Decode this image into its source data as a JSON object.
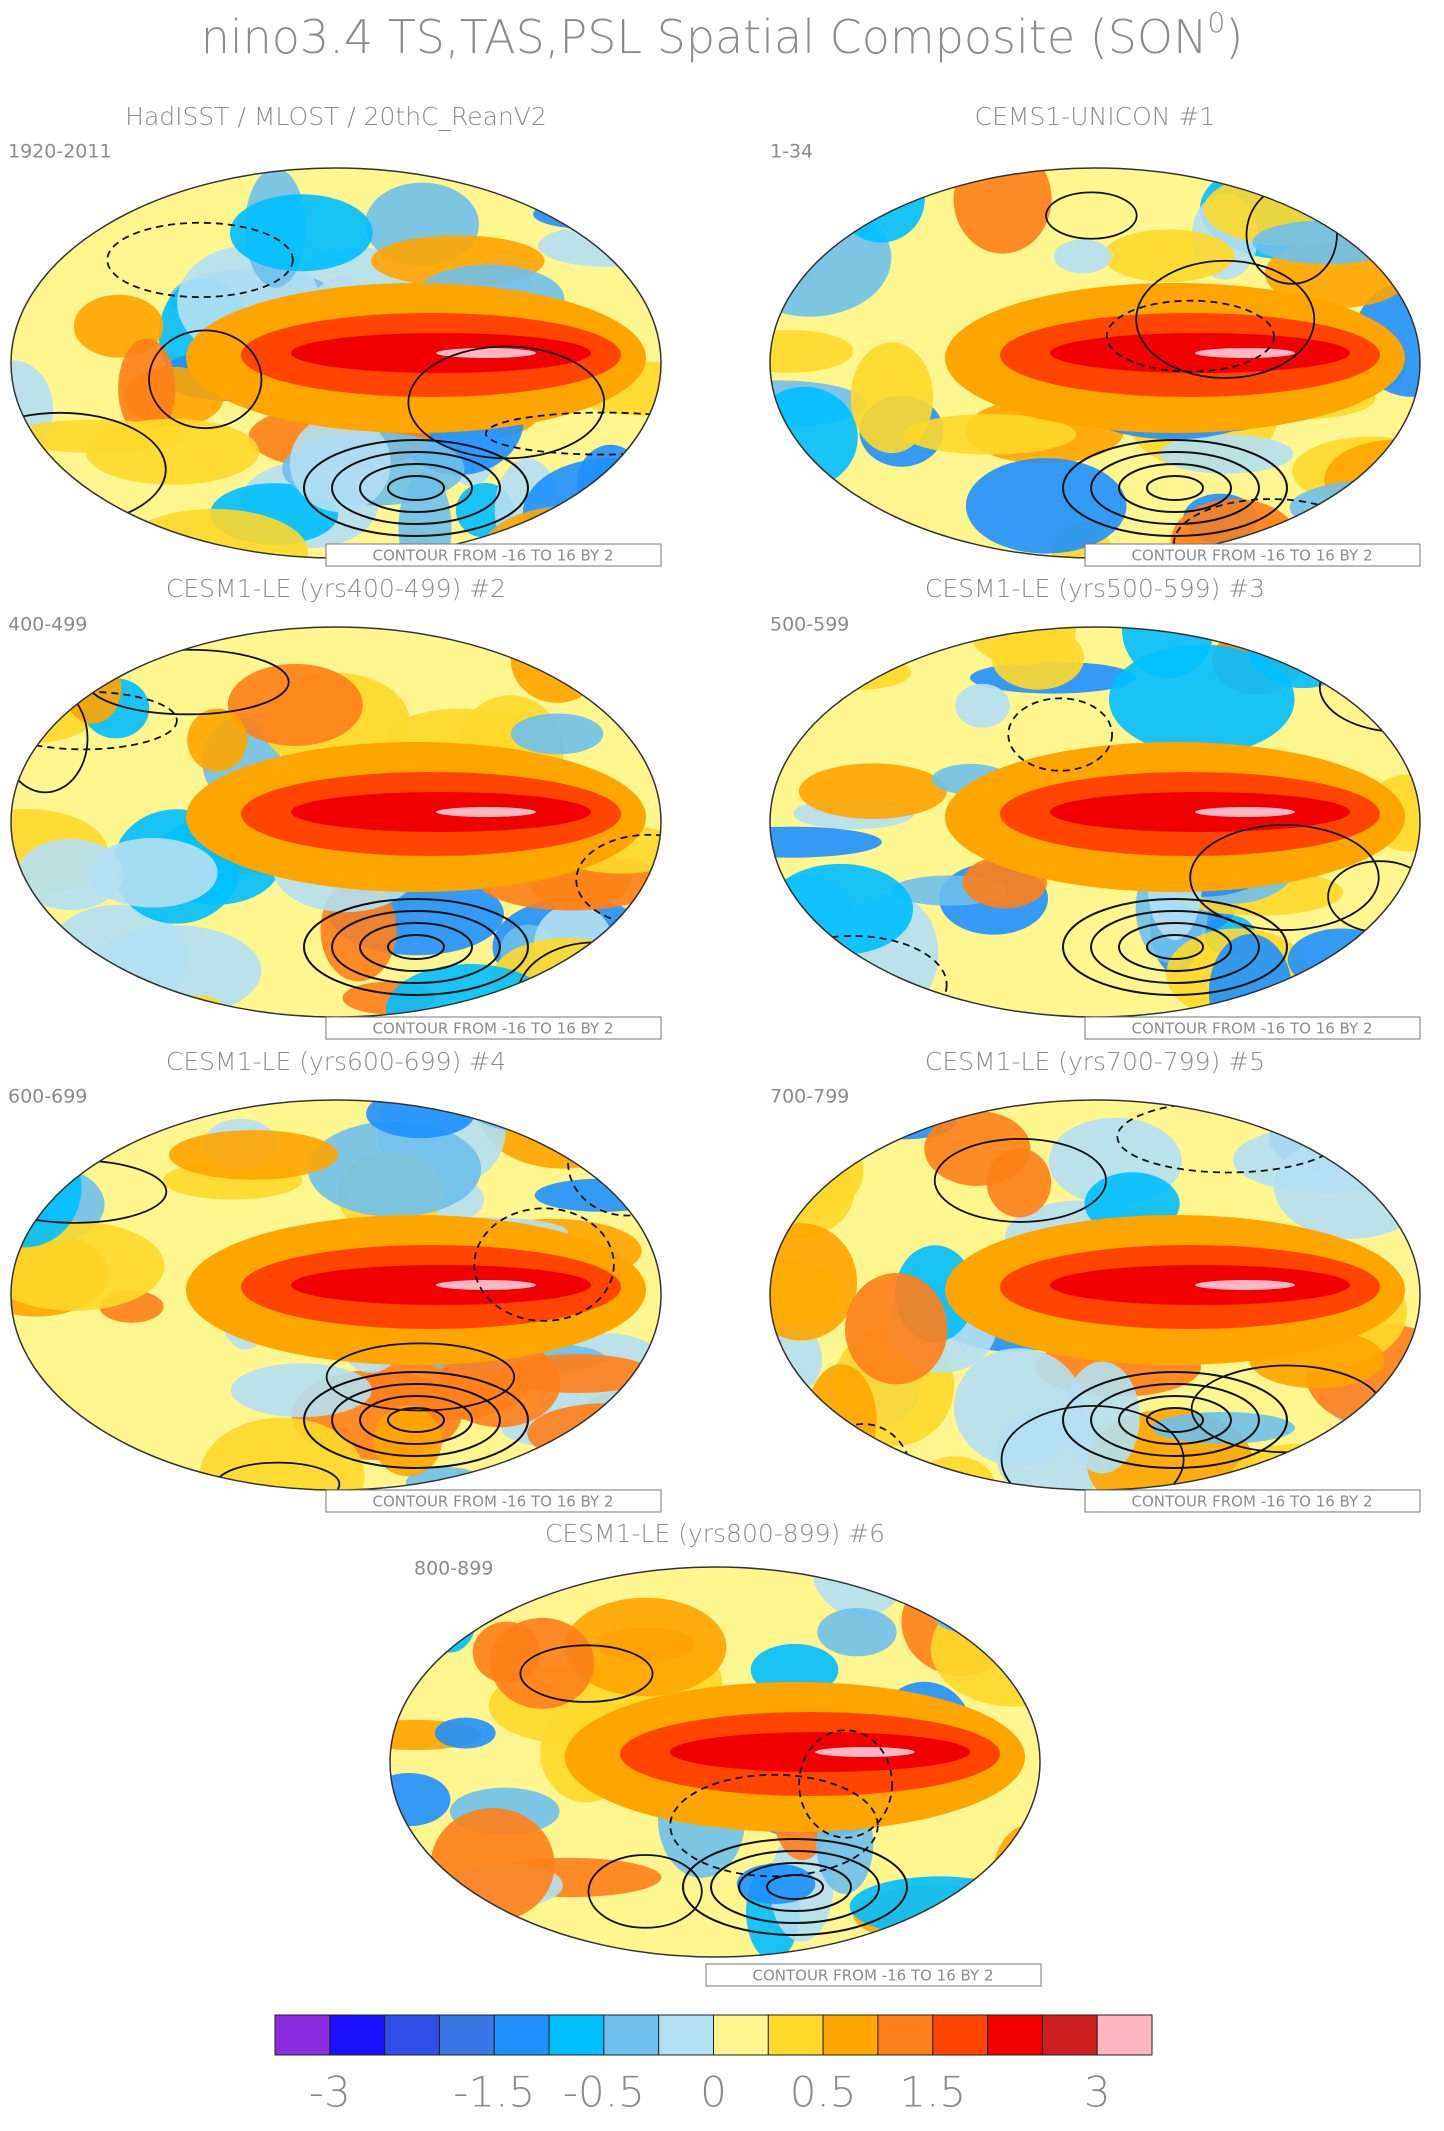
{
  "title": {
    "main": "nino3.4 TS,TAS,PSL Spatial Composite (SON",
    "sup": "0",
    "end": ")"
  },
  "panels": [
    {
      "title": "HadISST / MLOST / 20thC_ReanV2",
      "years": "1920-2011",
      "contour": "CONTOUR FROM -16 TO 16 BY 2"
    },
    {
      "title": "CEMS1-UNICON",
      "tag": "#1",
      "years": "1-34",
      "contour": "CONTOUR FROM -16 TO 16 BY 2"
    },
    {
      "title": "CESM1-LE (yrs400-499)",
      "tag": "#2",
      "years": "400-499",
      "contour": "CONTOUR FROM -16 TO 16 BY 2"
    },
    {
      "title": "CESM1-LE (yrs500-599)",
      "tag": "#3",
      "years": "500-599",
      "contour": "CONTOUR FROM -16 TO 16 BY 2"
    },
    {
      "title": "CESM1-LE (yrs600-699)",
      "tag": "#4",
      "years": "600-699",
      "contour": "CONTOUR FROM -16 TO 16 BY 2"
    },
    {
      "title": "CESM1-LE (yrs700-799)",
      "tag": "#5",
      "years": "700-799",
      "contour": "CONTOUR FROM -16 TO 16 BY 2"
    },
    {
      "title": "CESM1-LE (yrs800-899)",
      "tag": "#6",
      "years": "800-899",
      "contour": "CONTOUR FROM -16 TO 16 BY 2"
    }
  ],
  "colorbar": {
    "colors": [
      "#8a2be2",
      "#1a0fff",
      "#2f4fe6",
      "#3a78e8",
      "#1e90ff",
      "#00bfff",
      "#6ec0ec",
      "#b4e0f2",
      "#fff68f",
      "#ffd82a",
      "#ffa500",
      "#ff7f1a",
      "#ff4500",
      "#f00000",
      "#cd1f1f",
      "#ffb6c1"
    ],
    "levels": [
      -3,
      null,
      null,
      -1.5,
      null,
      -0.5,
      null,
      0,
      null,
      0.5,
      null,
      1.5,
      null,
      null,
      3
    ]
  }
}
